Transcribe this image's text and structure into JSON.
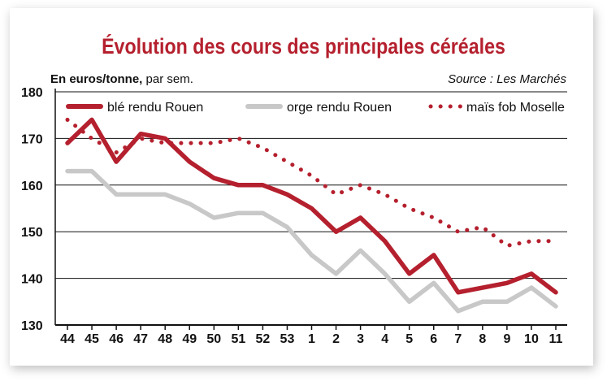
{
  "chart_data": {
    "type": "line",
    "title": "Évolution des cours des principales céréales",
    "ylabel_bold": "En euros/tonne,",
    "ylabel_rest": " par sem.",
    "source": "Source : Les Marchés",
    "x": [
      "44",
      "45",
      "46",
      "47",
      "48",
      "49",
      "50",
      "51",
      "52",
      "53",
      "1",
      "2",
      "3",
      "4",
      "5",
      "6",
      "7",
      "8",
      "9",
      "10",
      "11"
    ],
    "yticks": [
      130,
      140,
      150,
      160,
      170,
      180
    ],
    "ylim": [
      130,
      180
    ],
    "grid": true,
    "legend_position": "top",
    "series": [
      {
        "name": "blé rendu Rouen",
        "style": "solid",
        "color": "#b5202e",
        "values": [
          169,
          174,
          165,
          171,
          170,
          165,
          161.5,
          160,
          160,
          158,
          155,
          150,
          153,
          148,
          141,
          145,
          137,
          138,
          139,
          141,
          137
        ]
      },
      {
        "name": "orge rendu Rouen",
        "style": "solid",
        "color": "#c8c8c8",
        "values": [
          163,
          163,
          158,
          158,
          158,
          156,
          153,
          154,
          154,
          151,
          145,
          141,
          146,
          141,
          135,
          139,
          133,
          135,
          135,
          138,
          134
        ]
      },
      {
        "name": "maïs fob Moselle",
        "style": "dotted",
        "color": "#b5202e",
        "values": [
          174,
          170,
          167,
          170,
          169,
          169,
          169,
          170,
          168,
          165,
          162,
          158,
          160,
          158,
          155,
          153,
          150,
          151,
          147,
          148,
          148
        ]
      }
    ]
  }
}
